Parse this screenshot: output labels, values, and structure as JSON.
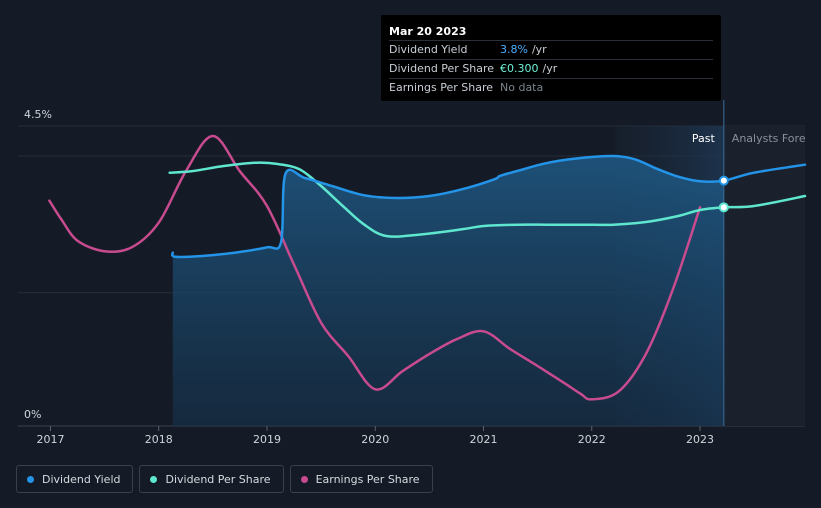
{
  "tooltip": {
    "date": "Mar 20 2023",
    "rows": [
      {
        "label": "Dividend Yield",
        "value": "3.8%",
        "unit": "/yr"
      },
      {
        "label": "Dividend Per Share",
        "value": "€0.300",
        "unit": "/yr"
      },
      {
        "label": "Earnings Per Share",
        "value": "No data",
        "unit": ""
      }
    ]
  },
  "legend": [
    {
      "label": "Dividend Yield",
      "color": "#2394e8"
    },
    {
      "label": "Dividend Per Share",
      "color": "#5fe6cf"
    },
    {
      "label": "Earnings Per Share",
      "color": "#c84b8f"
    }
  ],
  "chart_data": {
    "type": "line",
    "title": "",
    "xlabel": "",
    "ylabel": "",
    "y_tick_labels": [
      "4.5%",
      "0%"
    ],
    "x_tick_labels": [
      "2017",
      "2018",
      "2019",
      "2020",
      "2021",
      "2022",
      "2023"
    ],
    "xlim": [
      2016.7,
      2023.97
    ],
    "ylim": [
      0,
      4.5
    ],
    "region_labels": {
      "past": "Past",
      "forecast": "Analysts Forecasts"
    },
    "forecast_start": 2023.22,
    "series": [
      {
        "name": "Dividend Yield",
        "color": "#2394e8",
        "x": [
          2018.13,
          2018.15,
          2018.4,
          2018.7,
          2019.0,
          2019.13,
          2019.17,
          2019.35,
          2019.6,
          2019.9,
          2020.2,
          2020.5,
          2020.8,
          2021.1,
          2021.15,
          2021.3,
          2021.6,
          2021.9,
          2022.2,
          2022.4,
          2022.6,
          2022.8,
          2023.0,
          2023.22,
          2023.5,
          2023.97
        ],
        "y": [
          2.6,
          2.54,
          2.55,
          2.6,
          2.68,
          2.76,
          3.78,
          3.72,
          3.6,
          3.46,
          3.42,
          3.45,
          3.55,
          3.7,
          3.75,
          3.82,
          3.95,
          4.02,
          4.05,
          4.0,
          3.86,
          3.74,
          3.67,
          3.68,
          3.8,
          3.92
        ]
      },
      {
        "name": "Dividend Per Share",
        "color": "#5fe6cf",
        "x": [
          2018.1,
          2018.3,
          2018.6,
          2018.9,
          2019.1,
          2019.3,
          2019.5,
          2019.7,
          2019.9,
          2020.1,
          2020.4,
          2020.8,
          2021.0,
          2021.3,
          2021.6,
          2021.9,
          2022.2,
          2022.5,
          2022.8,
          2023.0,
          2023.22,
          2023.5,
          2023.97
        ],
        "y": [
          3.8,
          3.82,
          3.9,
          3.95,
          3.93,
          3.85,
          3.6,
          3.3,
          3.02,
          2.85,
          2.87,
          2.95,
          3.0,
          3.02,
          3.02,
          3.02,
          3.02,
          3.06,
          3.15,
          3.24,
          3.28,
          3.3,
          3.45
        ]
      },
      {
        "name": "Earnings Per Share",
        "color": "#c84b8f",
        "x": [
          2016.99,
          2017.1,
          2017.25,
          2017.5,
          2017.75,
          2018.0,
          2018.25,
          2018.5,
          2018.75,
          2019.0,
          2019.25,
          2019.5,
          2019.75,
          2020.0,
          2020.25,
          2020.5,
          2020.75,
          2021.0,
          2021.25,
          2021.5,
          2021.75,
          2021.9,
          2022.0,
          2022.25,
          2022.5,
          2022.75,
          2023.0
        ],
        "y": [
          3.38,
          3.1,
          2.78,
          2.62,
          2.68,
          3.05,
          3.82,
          4.35,
          3.82,
          3.3,
          2.42,
          1.55,
          1.05,
          0.55,
          0.82,
          1.08,
          1.3,
          1.42,
          1.15,
          0.9,
          0.64,
          0.48,
          0.4,
          0.52,
          1.08,
          2.05,
          3.28
        ]
      }
    ]
  }
}
